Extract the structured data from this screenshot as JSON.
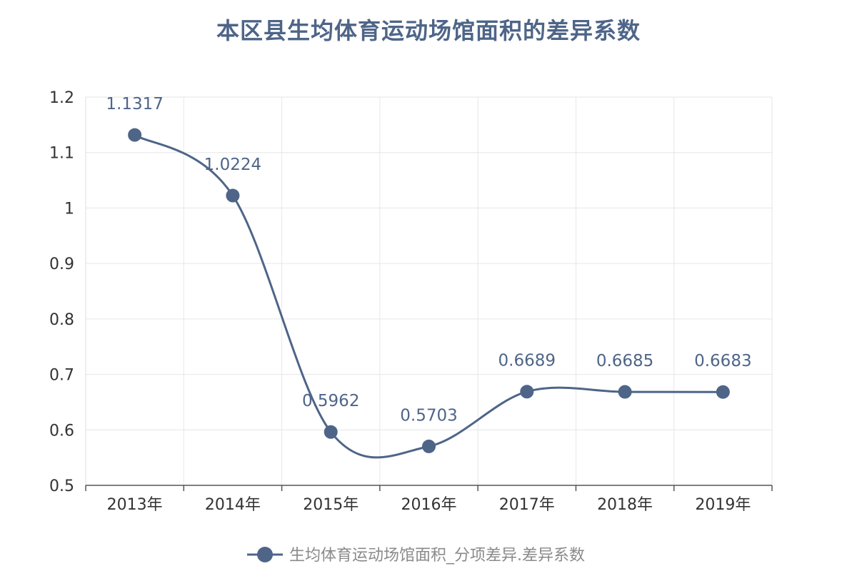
{
  "chart_data": {
    "type": "line",
    "title": "本区县生均体育运动场馆面积的差异系数",
    "categories": [
      "2013年",
      "2014年",
      "2015年",
      "2016年",
      "2017年",
      "2018年",
      "2019年"
    ],
    "series": [
      {
        "name": "生均体育运动场馆面积_分项差异.差异系数",
        "values": [
          1.1317,
          1.0224,
          0.5962,
          0.5703,
          0.6689,
          0.6685,
          0.6683
        ],
        "labels": [
          "1.1317",
          "1.0224",
          "0.5962",
          "0.5703",
          "0.6689",
          "0.6685",
          "0.6683"
        ],
        "color": "#4e6588",
        "smooth": true,
        "marker": "circle"
      }
    ],
    "ylim": [
      0.5,
      1.2
    ],
    "yticks": [
      "0.5",
      "0.6",
      "0.7",
      "0.8",
      "0.9",
      "1",
      "1.1",
      "1.2"
    ],
    "grid": true,
    "legend": "bottom-center"
  }
}
